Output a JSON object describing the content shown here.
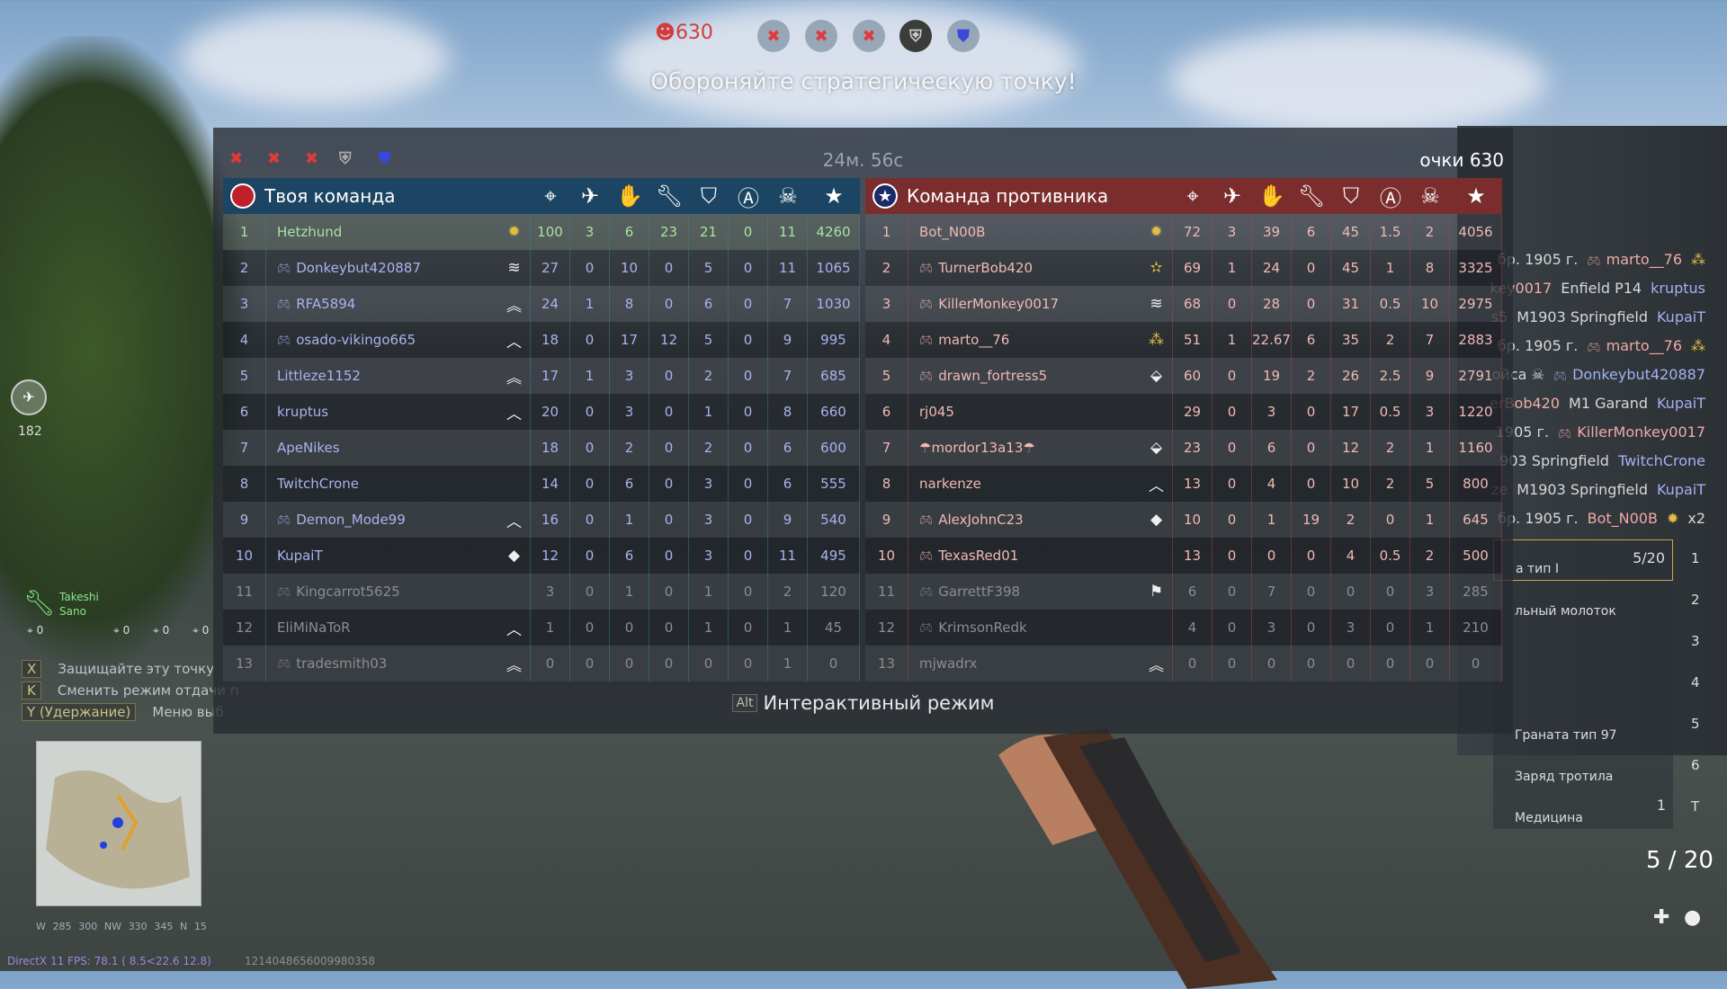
{
  "hud": {
    "score": "630",
    "objective": "Обороняйте стратегическую точку!",
    "compass_heading": "182",
    "compass_labels": [
      "W",
      "285",
      "300",
      "NW",
      "330",
      "345",
      "N",
      "15"
    ],
    "fps": "DirectX 11 FPS: 78.1 ( 8.5<22.6 12.8)",
    "session_id": "1214048656009980358",
    "squad_leader": "Takeshi Sano",
    "squad_counts": [
      "0",
      "0",
      "0",
      "0"
    ]
  },
  "colors": {
    "own_team": "#1b4562",
    "enemy_team": "#7b2d2d",
    "own_text": "#a9b3ee",
    "enemy_text": "#f0b9b4",
    "self_text": "#a8e39c",
    "objective_lost": "#d33c3c",
    "objective_own": "#3848d8"
  },
  "scoreboard": {
    "timer": "24м. 56с",
    "points": "очки 630",
    "alt_key": "Alt",
    "alt_label": "Интерактивный режим",
    "columns": [
      "crosshair-icon",
      "plane-tank-icon",
      "hand-icon",
      "wrench-icon",
      "shield-a-icon",
      "circle-a-icon",
      "skull-icon",
      "star-icon"
    ],
    "own": {
      "title": "Твоя команда",
      "players": [
        {
          "n": "1",
          "name": "Hetzhund",
          "gp": false,
          "rank": "sun",
          "stats": [
            "100",
            "3",
            "6",
            "23",
            "21",
            "0",
            "11",
            "4260"
          ],
          "me": true
        },
        {
          "n": "2",
          "name": "Donkeybut420887",
          "gp": true,
          "rank": "chev3",
          "stats": [
            "27",
            "0",
            "10",
            "0",
            "5",
            "0",
            "11",
            "1065"
          ]
        },
        {
          "n": "3",
          "name": "RFA5894",
          "gp": true,
          "rank": "chev2",
          "stats": [
            "24",
            "1",
            "8",
            "0",
            "6",
            "0",
            "7",
            "1030"
          ]
        },
        {
          "n": "4",
          "name": "osado-vikingo665",
          "gp": true,
          "rank": "chev1",
          "stats": [
            "18",
            "0",
            "17",
            "12",
            "5",
            "0",
            "9",
            "995"
          ]
        },
        {
          "n": "5",
          "name": "Littleze1152",
          "gp": false,
          "rank": "chev2",
          "stats": [
            "17",
            "1",
            "3",
            "0",
            "2",
            "0",
            "7",
            "685"
          ]
        },
        {
          "n": "6",
          "name": "kruptus",
          "gp": false,
          "rank": "chev1",
          "stats": [
            "20",
            "0",
            "3",
            "0",
            "1",
            "0",
            "8",
            "660"
          ]
        },
        {
          "n": "7",
          "name": "ApeNikes",
          "gp": false,
          "rank": "",
          "stats": [
            "18",
            "0",
            "2",
            "0",
            "2",
            "0",
            "6",
            "600"
          ]
        },
        {
          "n": "8",
          "name": "TwitchCrone",
          "gp": false,
          "rank": "",
          "stats": [
            "14",
            "0",
            "6",
            "0",
            "3",
            "0",
            "6",
            "555"
          ]
        },
        {
          "n": "9",
          "name": "Demon_Mode99",
          "gp": true,
          "rank": "chev1",
          "stats": [
            "16",
            "0",
            "1",
            "0",
            "3",
            "0",
            "9",
            "540"
          ]
        },
        {
          "n": "10",
          "name": "KupaiT",
          "gp": false,
          "rank": "diamond",
          "stats": [
            "12",
            "0",
            "6",
            "0",
            "3",
            "0",
            "11",
            "495"
          ]
        },
        {
          "n": "11",
          "name": "Kingcarrot5625",
          "gp": true,
          "rank": "",
          "stats": [
            "3",
            "0",
            "1",
            "0",
            "1",
            "0",
            "2",
            "120"
          ],
          "dim": true
        },
        {
          "n": "12",
          "name": "EliMiNaToR",
          "gp": false,
          "rank": "chev1",
          "stats": [
            "1",
            "0",
            "0",
            "0",
            "1",
            "0",
            "1",
            "45"
          ],
          "dim": true
        },
        {
          "n": "13",
          "name": "tradesmith03",
          "gp": true,
          "rank": "chev2",
          "stats": [
            "0",
            "0",
            "0",
            "0",
            "0",
            "0",
            "1",
            "0"
          ],
          "dim": true
        }
      ]
    },
    "enemy": {
      "title": "Команда противника",
      "players": [
        {
          "n": "1",
          "name": "Bot_N00B",
          "gp": false,
          "rank": "sun",
          "stats": [
            "72",
            "3",
            "39",
            "6",
            "45",
            "1.5",
            "2",
            "4056"
          ]
        },
        {
          "n": "2",
          "name": "TurnerBob420",
          "gp": true,
          "rank": "star",
          "stats": [
            "69",
            "1",
            "24",
            "0",
            "45",
            "1",
            "8",
            "3325"
          ]
        },
        {
          "n": "3",
          "name": "KillerMonkey0017",
          "gp": true,
          "rank": "chev3",
          "stats": [
            "68",
            "0",
            "28",
            "0",
            "31",
            "0.5",
            "10",
            "2975"
          ]
        },
        {
          "n": "4",
          "name": "marto__76",
          "gp": true,
          "rank": "stars4",
          "stats": [
            "51",
            "1",
            "22.67",
            "6",
            "35",
            "2",
            "7",
            "2883"
          ]
        },
        {
          "n": "5",
          "name": "drawn_fortress5",
          "gp": true,
          "rank": "insignia",
          "stats": [
            "60",
            "0",
            "19",
            "2",
            "26",
            "2.5",
            "9",
            "2791"
          ]
        },
        {
          "n": "6",
          "name": "rj045",
          "gp": false,
          "rank": "",
          "stats": [
            "29",
            "0",
            "3",
            "0",
            "17",
            "0.5",
            "3",
            "1220"
          ]
        },
        {
          "n": "7",
          "name": "☂mordor13a13☂",
          "gp": false,
          "rank": "insignia",
          "stats": [
            "23",
            "0",
            "6",
            "0",
            "12",
            "2",
            "1",
            "1160"
          ]
        },
        {
          "n": "8",
          "name": "narkenze",
          "gp": false,
          "rank": "chev1",
          "stats": [
            "13",
            "0",
            "4",
            "0",
            "10",
            "2",
            "5",
            "800"
          ]
        },
        {
          "n": "9",
          "name": "AlexJohnC23",
          "gp": true,
          "rank": "diamond",
          "stats": [
            "10",
            "0",
            "1",
            "19",
            "2",
            "0",
            "1",
            "645"
          ]
        },
        {
          "n": "10",
          "name": "TexasRed01",
          "gp": true,
          "rank": "",
          "stats": [
            "13",
            "0",
            "0",
            "0",
            "4",
            "0.5",
            "2",
            "500"
          ]
        },
        {
          "n": "11",
          "name": "GarrettF398",
          "gp": true,
          "rank": "flag",
          "stats": [
            "6",
            "0",
            "7",
            "0",
            "0",
            "0",
            "3",
            "285"
          ],
          "dim": true
        },
        {
          "n": "12",
          "name": "KrimsonRedk",
          "gp": true,
          "rank": "",
          "stats": [
            "4",
            "0",
            "3",
            "0",
            "3",
            "0",
            "1",
            "210"
          ],
          "dim": true
        },
        {
          "n": "13",
          "name": "mjwadrx",
          "gp": false,
          "rank": "chev2",
          "stats": [
            "0",
            "0",
            "0",
            "0",
            "0",
            "0",
            "0",
            "0"
          ],
          "dim": true
        }
      ]
    }
  },
  "killfeed": [
    {
      "left": "",
      "weapon": "бр. 1905 г.",
      "right": "marto__76",
      "side": "red",
      "gp": true,
      "badge": "stars4"
    },
    {
      "left": "key0017",
      "weapon": "Enfield P14",
      "right": "kruptus",
      "side": "blue"
    },
    {
      "left": "s5",
      "weapon": "M1903 Springfield",
      "right": "KupaiT",
      "side": "blue"
    },
    {
      "left": "",
      "weapon": "бр. 1905 г.",
      "right": "marto__76",
      "side": "red",
      "gp": true,
      "badge": "stars4"
    },
    {
      "left": "",
      "weapon": "ойса ☠",
      "right": "Donkeybut420887",
      "side": "blue",
      "gp": true
    },
    {
      "left": "erBob420",
      "weapon": "M1 Garand",
      "right": "KupaiT",
      "side": "blue"
    },
    {
      "left": "",
      "weapon": "1905 г.",
      "right": "KillerMonkey0017",
      "side": "red",
      "gp": true
    },
    {
      "left": "",
      "weapon": "903 Springfield",
      "right": "TwitchCrone",
      "side": "blue"
    },
    {
      "left": "ze",
      "weapon": "M1903 Springfield",
      "right": "KupaiT",
      "side": "blue"
    },
    {
      "left": "",
      "weapon": "бр. 1905 г.",
      "right": "Bot_N00B",
      "side": "red",
      "badge": "sun",
      "mult": "x2"
    }
  ],
  "inventory": {
    "slots": [
      {
        "name": "а тип I",
        "count": "5/20",
        "key": "1",
        "selected": true
      },
      {
        "name": "льный молоток",
        "count": "",
        "key": "2"
      },
      {
        "name": "",
        "count": "",
        "key": "3"
      },
      {
        "name": "",
        "count": "",
        "key": "4"
      },
      {
        "name": "Граната тип 97",
        "count": "",
        "key": "5"
      },
      {
        "name": "Заряд тротила",
        "count": "",
        "key": "6"
      },
      {
        "name": "Медицина",
        "count": "1",
        "key": "T"
      }
    ],
    "ammo": "5 / 20"
  },
  "hints": [
    {
      "key": "X",
      "label": "Защищайте эту точку"
    },
    {
      "key": "K",
      "label": "Сменить режим отдачи п"
    },
    {
      "key": "Y (Удержание)",
      "label": "Меню выб"
    }
  ]
}
